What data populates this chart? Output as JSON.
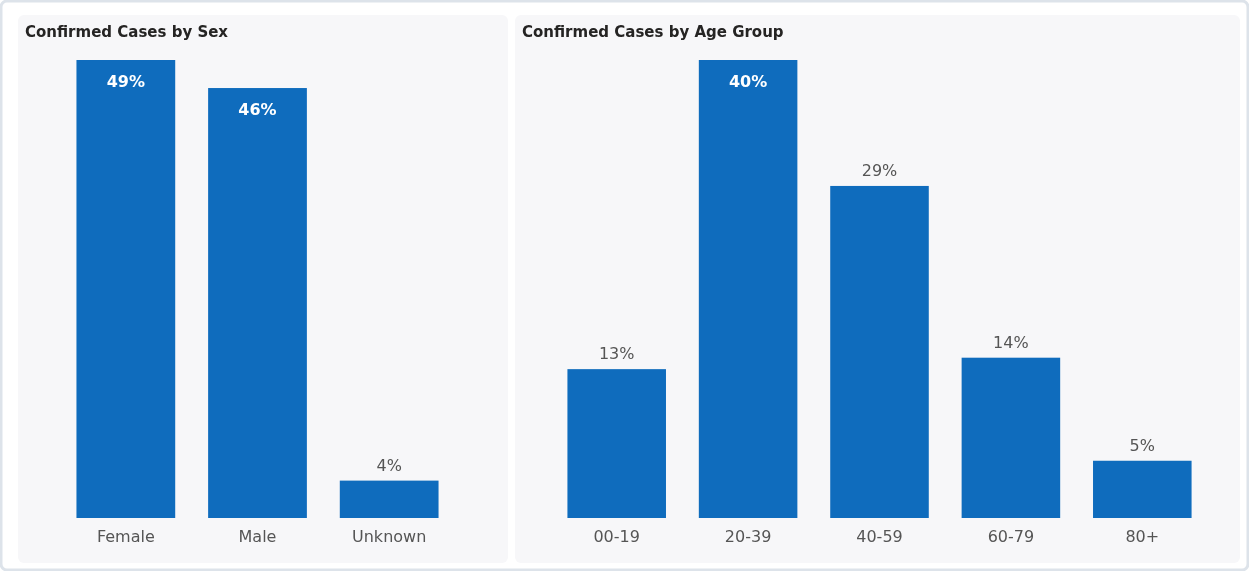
{
  "chart_data": [
    {
      "type": "bar",
      "title": "Confirmed Cases by Sex",
      "categories": [
        "Female",
        "Male",
        "Unknown"
      ],
      "values": [
        49,
        46,
        4
      ],
      "color": "#0f6cbd",
      "value_labels": [
        "49%",
        "46%",
        "4%"
      ]
    },
    {
      "type": "bar",
      "title": "Confirmed Cases by Age Group",
      "categories": [
        "00-19",
        "20-39",
        "40-59",
        "60-79",
        "80+"
      ],
      "values": [
        13,
        40,
        29,
        14,
        5
      ],
      "color": "#0f6cbd",
      "value_labels": [
        "13%",
        "40%",
        "29%",
        "14%",
        "5%"
      ]
    }
  ]
}
